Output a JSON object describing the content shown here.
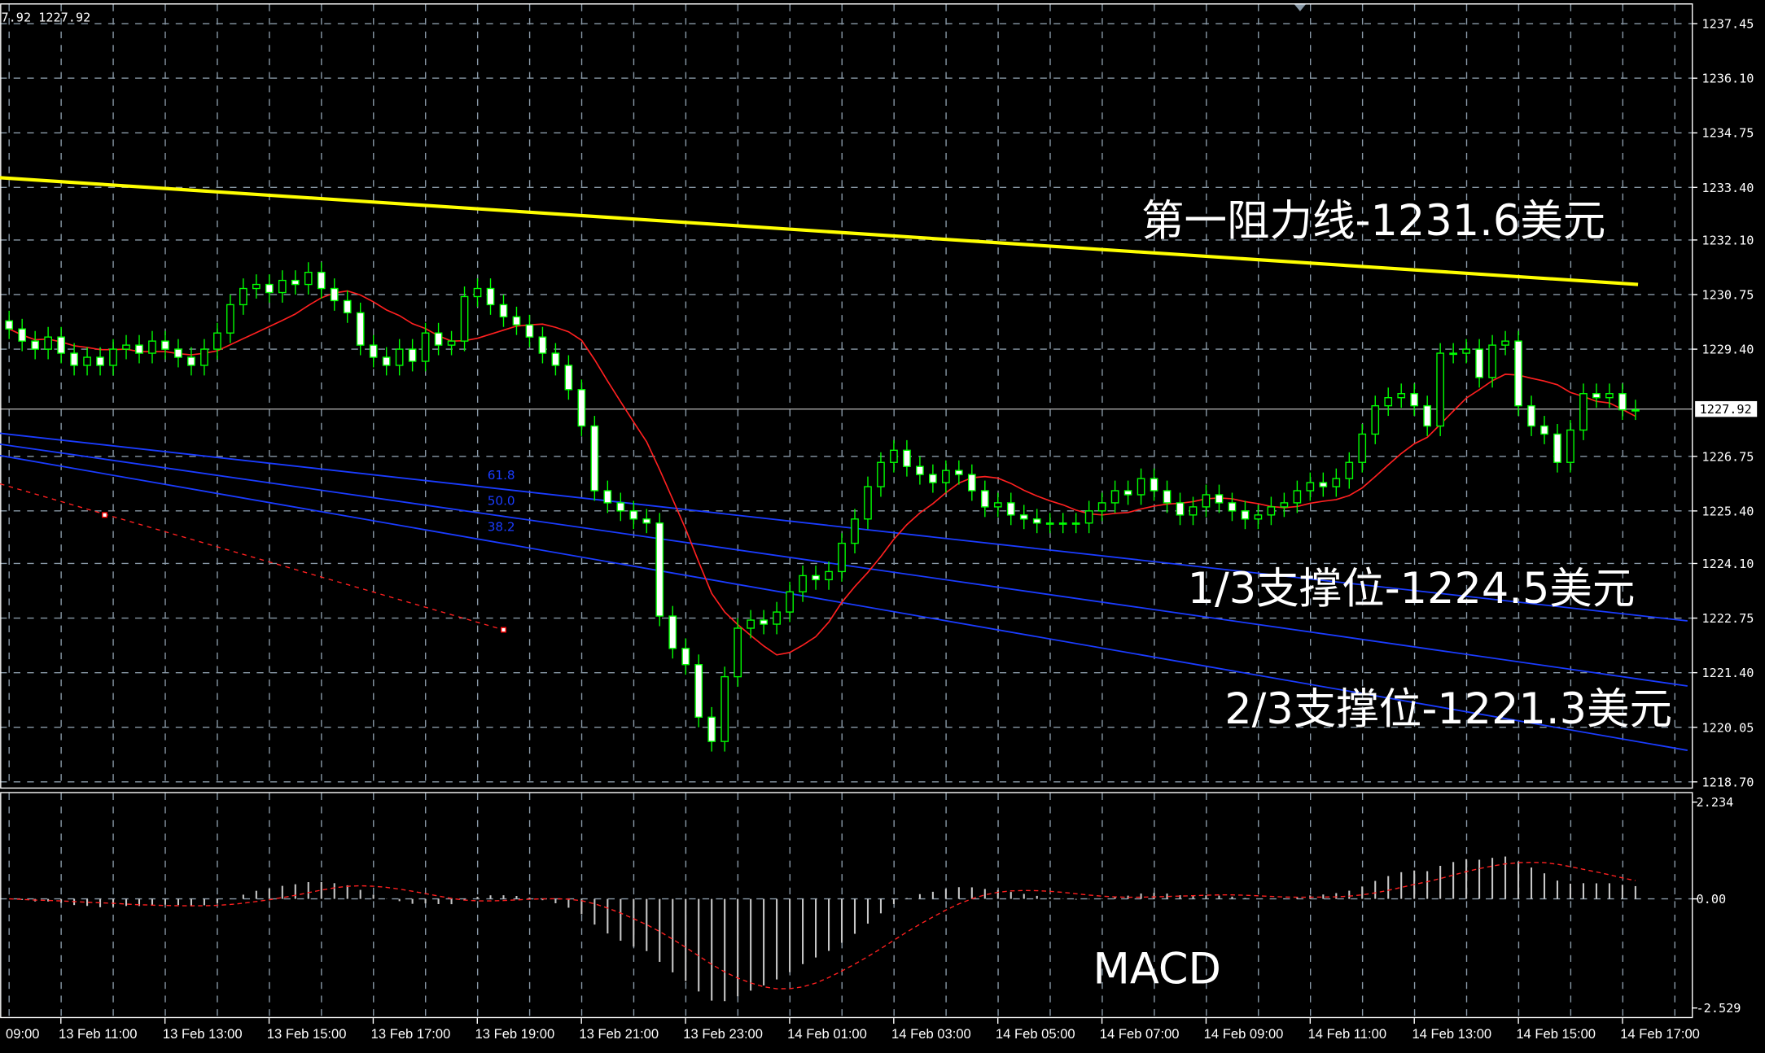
{
  "header": {
    "info": "7.92 1227.92"
  },
  "colors": {
    "background": "#000000",
    "grid": "#8a9aa8",
    "candle_up": "#00ff00",
    "candle_down_body": "#ffffff",
    "ma": "#ff2020",
    "resistance": "#ffff00",
    "fib": "#1a3cff",
    "macd_hist": "#c8c8c8",
    "macd_signal": "#ff2020"
  },
  "chart_data": [
    {
      "type": "candlestick",
      "timeframe_note": "",
      "price_ticks": [
        "1237.45",
        "1236.10",
        "1234.75",
        "1233.40",
        "1232.10",
        "1230.75",
        "1229.40",
        "1227.92",
        "1226.75",
        "1225.40",
        "1224.10",
        "1222.75",
        "1221.40",
        "1220.05",
        "1218.70"
      ],
      "ylim": [
        1218.7,
        1237.45
      ],
      "grid": true,
      "current_price": "1227.92",
      "closes": [
        1229.9,
        1229.6,
        1229.4,
        1229.7,
        1229.3,
        1229.0,
        1229.2,
        1229.0,
        1229.4,
        1229.5,
        1229.3,
        1229.6,
        1229.4,
        1229.2,
        1229.0,
        1229.4,
        1229.8,
        1230.5,
        1230.9,
        1231.0,
        1230.8,
        1231.1,
        1231.0,
        1231.3,
        1230.9,
        1230.6,
        1230.3,
        1229.5,
        1229.2,
        1229.0,
        1229.4,
        1229.1,
        1229.8,
        1229.5,
        1229.6,
        1230.7,
        1230.9,
        1230.5,
        1230.2,
        1230.0,
        1229.7,
        1229.3,
        1229.0,
        1228.4,
        1227.5,
        1225.9,
        1225.6,
        1225.4,
        1225.2,
        1225.1,
        1222.8,
        1222.0,
        1221.6,
        1220.3,
        1219.7,
        1221.3,
        1222.5,
        1222.7,
        1222.6,
        1222.9,
        1223.4,
        1223.8,
        1223.7,
        1223.9,
        1224.6,
        1225.2,
        1226.0,
        1226.6,
        1226.9,
        1226.5,
        1226.3,
        1226.1,
        1226.4,
        1226.3,
        1225.9,
        1225.5,
        1225.6,
        1225.3,
        1225.2,
        1225.1,
        1225.1,
        1225.1,
        1225.1,
        1225.4,
        1225.6,
        1225.9,
        1225.8,
        1226.2,
        1225.9,
        1225.6,
        1225.3,
        1225.5,
        1225.8,
        1225.6,
        1225.4,
        1225.2,
        1225.3,
        1225.5,
        1225.6,
        1225.9,
        1226.1,
        1226.0,
        1226.2,
        1226.6,
        1227.3,
        1228.0,
        1228.2,
        1228.3,
        1228.0,
        1227.5,
        1229.3,
        1229.3,
        1229.4,
        1228.7,
        1229.5,
        1229.6,
        1228.0,
        1227.5,
        1227.3,
        1226.6,
        1227.4,
        1228.3,
        1228.2,
        1228.3,
        1227.9,
        1227.9
      ],
      "time_labels": [
        "09:00",
        "13 Feb 11:00",
        "13 Feb 13:00",
        "13 Feb 15:00",
        "13 Feb 17:00",
        "13 Feb 19:00",
        "13 Feb 21:00",
        "13 Feb 23:00",
        "14 Feb 01:00",
        "14 Feb 03:00",
        "14 Feb 05:00",
        "14 Feb 07:00",
        "14 Feb 09:00",
        "14 Feb 11:00",
        "14 Feb 13:00",
        "14 Feb 15:00",
        "14 Feb 17:00"
      ],
      "lines": [
        {
          "kind": "resistance",
          "from": [
            -0.7,
            1233.64
          ],
          "to": [
            125.2,
            1231.0
          ]
        },
        {
          "kind": "fib-channel",
          "from": [
            -0.7,
            1227.32
          ],
          "to": [
            129,
            1222.68
          ]
        },
        {
          "kind": "fib-channel",
          "from": [
            -0.7,
            1227.05
          ],
          "to": [
            129,
            1221.07
          ]
        },
        {
          "kind": "fib-channel",
          "from": [
            -0.7,
            1226.77
          ],
          "to": [
            129,
            1219.48
          ]
        },
        {
          "kind": "fib-base",
          "from": [
            -0.7,
            1226.07
          ],
          "to": [
            38,
            1222.46
          ]
        }
      ],
      "fib_labels": [
        "61.8",
        "50.0",
        "38.2"
      ],
      "annotations": [
        "第一阻力线-1231.6美元",
        "1/3支撑位-1224.5美元",
        "2/3支撑位-1221.3美元"
      ]
    },
    {
      "type": "histogram",
      "title": "MACD",
      "ticks": [
        "2.234",
        "0.00",
        "-2.529"
      ],
      "ylim": [
        -2.529,
        2.234
      ]
    }
  ]
}
